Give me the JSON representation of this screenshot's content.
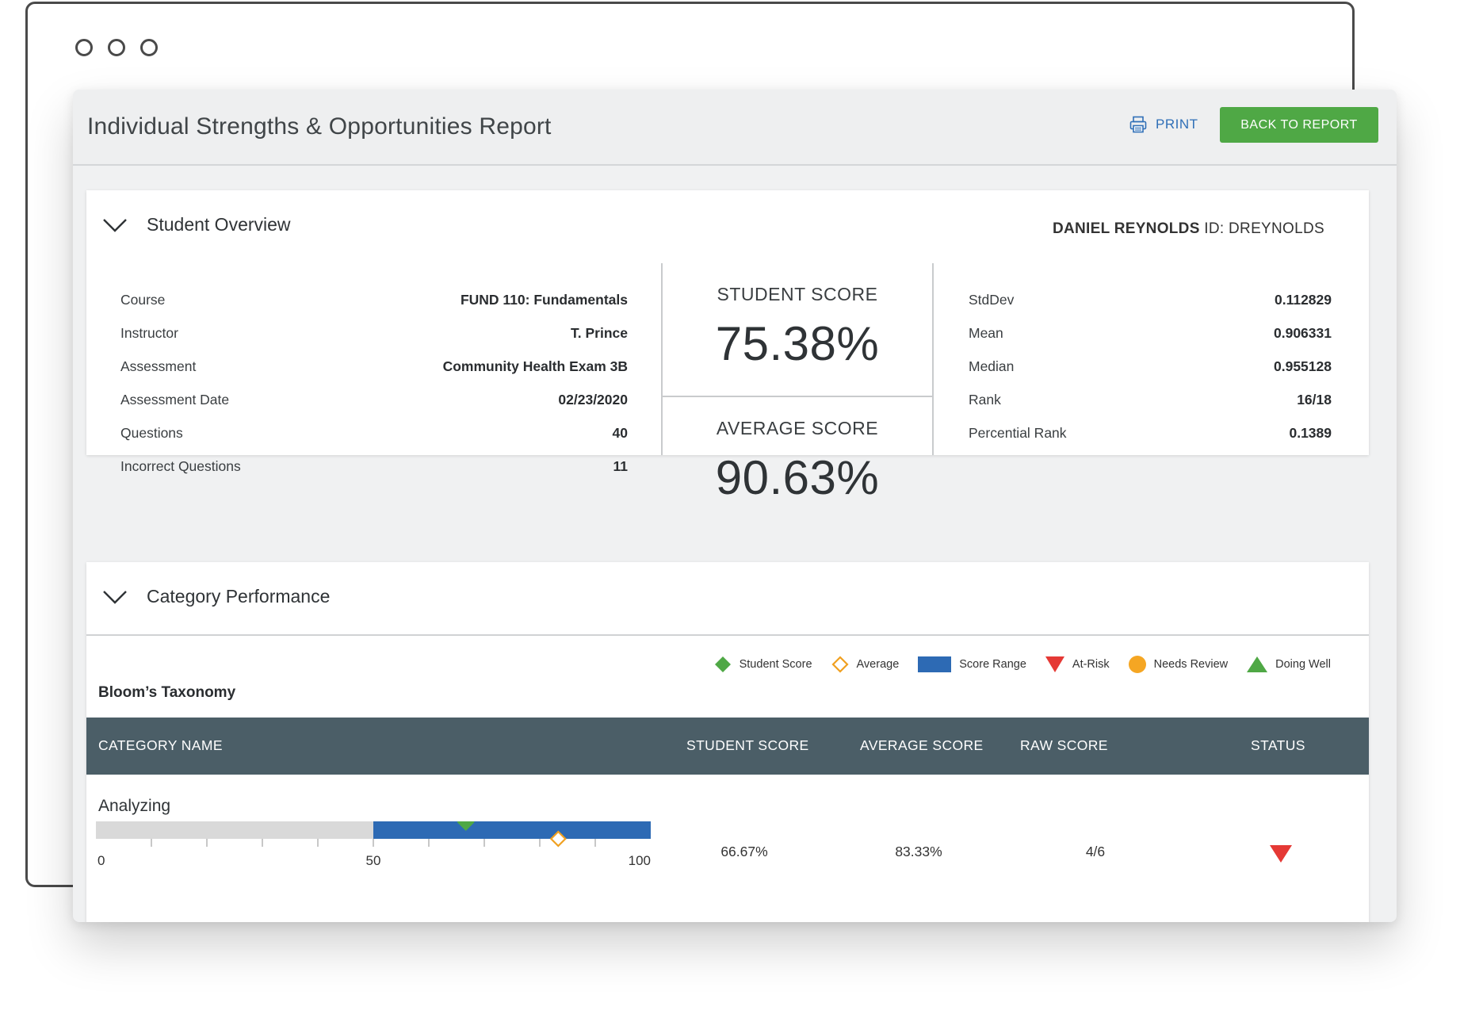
{
  "report": {
    "title": "Individual Strengths & Opportunities Report",
    "print_label": "PRINT",
    "back_label": "BACK TO REPORT"
  },
  "overview": {
    "title": "Student Overview",
    "student_name": "DANIEL REYNOLDS",
    "student_id": "ID: DREYNOLDS",
    "info": [
      {
        "label": "Course",
        "value": "FUND 110: Fundamentals"
      },
      {
        "label": "Instructor",
        "value": "T. Prince"
      },
      {
        "label": "Assessment",
        "value": "Community Health Exam 3B"
      },
      {
        "label": "Assessment Date",
        "value": "02/23/2020"
      },
      {
        "label": "Questions",
        "value": "40"
      },
      {
        "label": "Incorrect Questions",
        "value": "11"
      }
    ],
    "student_score_label": "STUDENT SCORE",
    "student_score": "75.38%",
    "average_score_label": "AVERAGE SCORE",
    "average_score": "90.63%",
    "stats": [
      {
        "label": "StdDev",
        "value": "0.112829"
      },
      {
        "label": "Mean",
        "value": "0.906331"
      },
      {
        "label": "Median",
        "value": "0.955128"
      },
      {
        "label": "Rank",
        "value": "16/18"
      },
      {
        "label": "Percential Rank",
        "value": "0.1389"
      }
    ]
  },
  "category": {
    "title": "Category Performance",
    "legend": {
      "student_score": "Student Score",
      "average": "Average",
      "score_range": "Score Range",
      "at_risk": "At-Risk",
      "needs_review": "Needs Review",
      "doing_well": "Doing Well"
    },
    "section_title": "Bloom’s Taxonomy",
    "columns": {
      "name": "CATEGORY NAME",
      "student": "STUDENT SCORE",
      "average": "AVERAGE SCORE",
      "raw": "RAW SCORE",
      "status": "STATUS"
    },
    "rows": [
      {
        "name": "Analyzing",
        "student_score": "66.67%",
        "average_score": "83.33%",
        "raw_score": "4/6",
        "status": "at-risk",
        "range_min": 50,
        "range_max": 100,
        "student_value": 66.67,
        "average_value": 83.33
      }
    ],
    "axis": {
      "min": 0,
      "max": 100,
      "tick_labels": [
        "0",
        "50",
        "100"
      ]
    }
  },
  "colors": {
    "accent_green": "#4fa845",
    "link_blue": "#2f6fb7",
    "range_blue": "#2d6ab4",
    "track_gray": "#d9d9d9",
    "at_risk_red": "#e53935",
    "needs_review_orange": "#f5a623",
    "average_orange": "#f0a020",
    "table_header": "#4b5e67"
  }
}
